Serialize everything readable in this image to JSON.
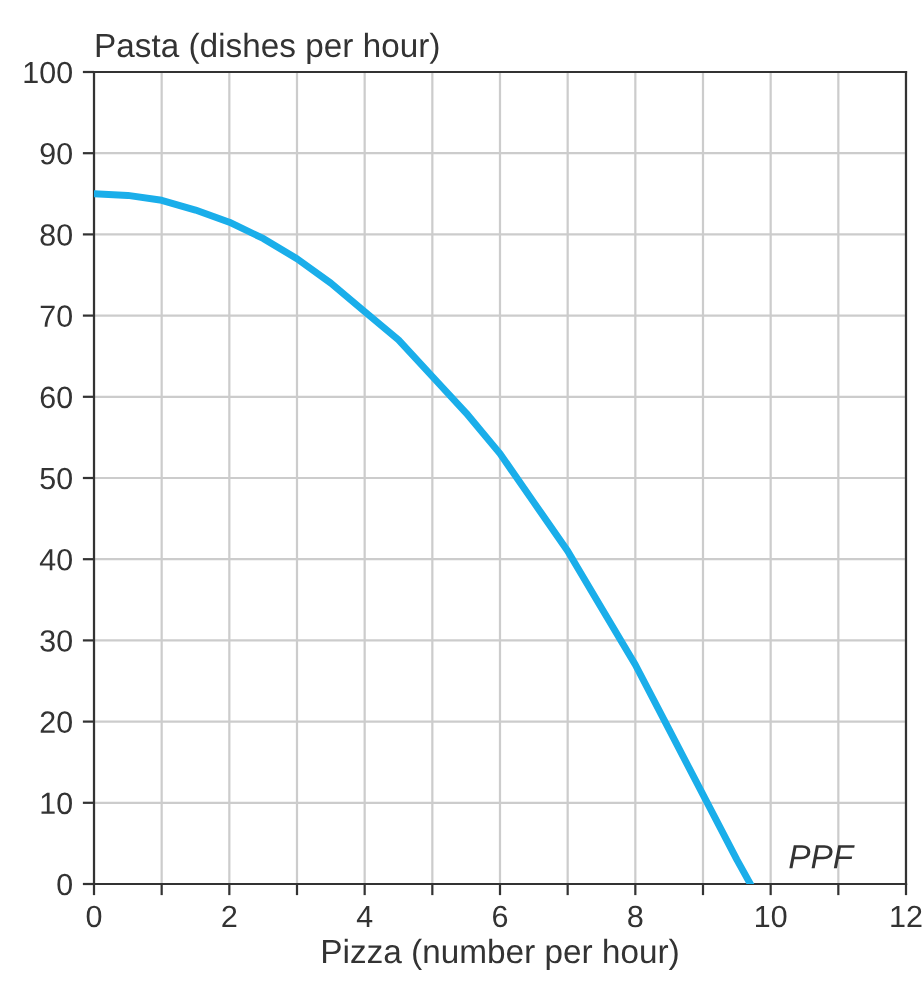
{
  "chart_data": {
    "type": "line",
    "xlabel": "Pizza (number per hour)",
    "ylabel": "Pasta (dishes per hour)",
    "x": [
      0,
      0.5,
      1,
      1.5,
      2,
      2.5,
      3,
      3.5,
      4,
      4.5,
      5,
      5.5,
      6,
      6.5,
      7,
      7.5,
      8,
      8.5,
      9,
      9.5,
      9.7
    ],
    "series": [
      {
        "color": "#1aaeea",
        "values": [
          85,
          84.8,
          84.2,
          83,
          81.5,
          79.5,
          77,
          74,
          70.5,
          67,
          62.5,
          58,
          53,
          47,
          41,
          34,
          27,
          19,
          11,
          3,
          0
        ]
      }
    ],
    "annotations": [
      "PPF"
    ],
    "xlim": [
      0,
      12
    ],
    "ylim": [
      0,
      100
    ],
    "xticks": [
      0,
      {
        "value": 1,
        "label": null
      },
      2,
      {
        "value": 3,
        "label": null
      },
      4,
      {
        "value": 5,
        "label": null
      },
      6,
      {
        "value": 7,
        "label": null
      },
      8,
      {
        "value": 9,
        "label": null
      },
      10,
      {
        "value": 11,
        "label": null
      },
      12
    ],
    "yticks": [
      0,
      10,
      20,
      30,
      40,
      50,
      60,
      70,
      80,
      90,
      100
    ],
    "grid": true,
    "marker": "none",
    "line_style": "solid"
  }
}
